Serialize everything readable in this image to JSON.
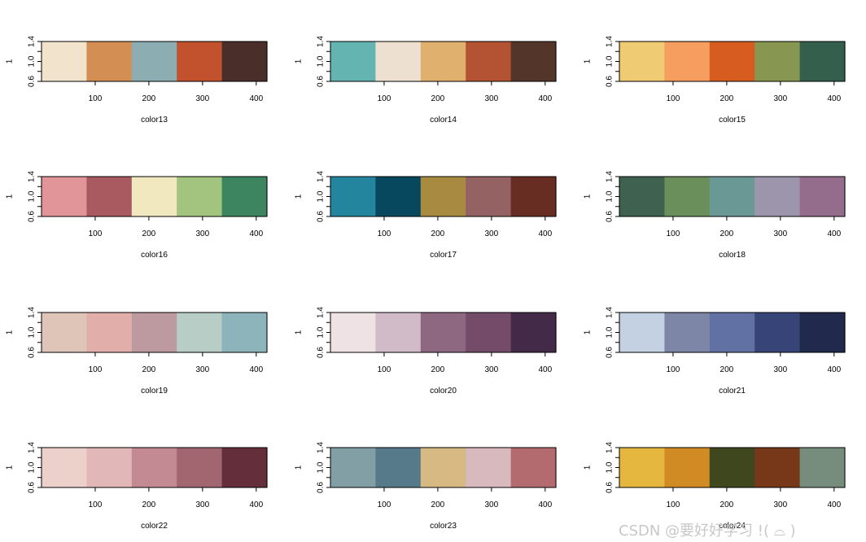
{
  "chart_data": [
    {
      "type": "heatmap",
      "xlabel": "color13",
      "ylabel": "1",
      "ylim": [
        0.6,
        1.4
      ],
      "yticks": [
        "0.6",
        "1.0",
        "1.4"
      ],
      "xlim": [
        0,
        420
      ],
      "xticks": [
        "100",
        "200",
        "300",
        "400"
      ],
      "grid": false,
      "colors": [
        "#F2E3CC",
        "#D38F53",
        "#8CAEB2",
        "#C2512E",
        "#4A2E2A"
      ]
    },
    {
      "type": "heatmap",
      "xlabel": "color14",
      "ylabel": "1",
      "ylim": [
        0.6,
        1.4
      ],
      "yticks": [
        "0.6",
        "1.0",
        "1.4"
      ],
      "xlim": [
        0,
        420
      ],
      "xticks": [
        "100",
        "200",
        "300",
        "400"
      ],
      "grid": false,
      "colors": [
        "#64B5B2",
        "#EEE0D0",
        "#E0B06E",
        "#B35334",
        "#533629"
      ]
    },
    {
      "type": "heatmap",
      "xlabel": "color15",
      "ylabel": "1",
      "ylim": [
        0.6,
        1.4
      ],
      "yticks": [
        "0.6",
        "1.0",
        "1.4"
      ],
      "xlim": [
        0,
        420
      ],
      "xticks": [
        "100",
        "200",
        "300",
        "400"
      ],
      "grid": false,
      "colors": [
        "#EFCB73",
        "#F69D60",
        "#D65C1F",
        "#879751",
        "#345F4C"
      ]
    },
    {
      "type": "heatmap",
      "xlabel": "color16",
      "ylabel": "1",
      "ylim": [
        0.6,
        1.4
      ],
      "yticks": [
        "0.6",
        "1.0",
        "1.4"
      ],
      "xlim": [
        0,
        420
      ],
      "xticks": [
        "100",
        "200",
        "300",
        "400"
      ],
      "grid": false,
      "colors": [
        "#E29599",
        "#A95A61",
        "#F1E8C0",
        "#A2C47E",
        "#3D8561"
      ]
    },
    {
      "type": "heatmap",
      "xlabel": "color17",
      "ylabel": "1",
      "ylim": [
        0.6,
        1.4
      ],
      "yticks": [
        "0.6",
        "1.0",
        "1.4"
      ],
      "xlim": [
        0,
        420
      ],
      "xticks": [
        "100",
        "200",
        "300",
        "400"
      ],
      "grid": false,
      "colors": [
        "#24869E",
        "#07485F",
        "#A88B40",
        "#946263",
        "#672D23"
      ]
    },
    {
      "type": "heatmap",
      "xlabel": "color18",
      "ylabel": "1",
      "ylim": [
        0.6,
        1.4
      ],
      "yticks": [
        "0.6",
        "1.0",
        "1.4"
      ],
      "xlim": [
        0,
        420
      ],
      "xticks": [
        "100",
        "200",
        "300",
        "400"
      ],
      "grid": false,
      "colors": [
        "#3E6150",
        "#6A8F5B",
        "#6A9894",
        "#9D95AC",
        "#946C8C"
      ]
    },
    {
      "type": "heatmap",
      "xlabel": "color19",
      "ylabel": "1",
      "ylim": [
        0.6,
        1.4
      ],
      "yticks": [
        "0.6",
        "1.0",
        "1.4"
      ],
      "xlim": [
        0,
        420
      ],
      "xticks": [
        "100",
        "200",
        "300",
        "400"
      ],
      "grid": false,
      "colors": [
        "#DEC5B7",
        "#E2AEAA",
        "#BC9AA0",
        "#B8CDC5",
        "#8DB4BA"
      ]
    },
    {
      "type": "heatmap",
      "xlabel": "color20",
      "ylabel": "1",
      "ylim": [
        0.6,
        1.4
      ],
      "yticks": [
        "0.6",
        "1.0",
        "1.4"
      ],
      "xlim": [
        0,
        420
      ],
      "xticks": [
        "100",
        "200",
        "300",
        "400"
      ],
      "grid": false,
      "colors": [
        "#EEE2E5",
        "#D2BBC8",
        "#8D6880",
        "#744B68",
        "#432A49"
      ]
    },
    {
      "type": "heatmap",
      "xlabel": "color21",
      "ylabel": "1",
      "ylim": [
        0.6,
        1.4
      ],
      "yticks": [
        "0.6",
        "1.0",
        "1.4"
      ],
      "xlim": [
        0,
        420
      ],
      "xticks": [
        "100",
        "200",
        "300",
        "400"
      ],
      "grid": false,
      "colors": [
        "#C4D1E3",
        "#7D86A6",
        "#6271A3",
        "#374478",
        "#212A4C"
      ]
    },
    {
      "type": "heatmap",
      "xlabel": "color22",
      "ylabel": "1",
      "ylim": [
        0.6,
        1.4
      ],
      "yticks": [
        "0.6",
        "1.0",
        "1.4"
      ],
      "xlim": [
        0,
        420
      ],
      "xticks": [
        "100",
        "200",
        "300",
        "400"
      ],
      "grid": false,
      "colors": [
        "#ECD1CA",
        "#E1B7B8",
        "#C48A93",
        "#A1666F",
        "#642E3A"
      ]
    },
    {
      "type": "heatmap",
      "xlabel": "color23",
      "ylabel": "1",
      "ylim": [
        0.6,
        1.4
      ],
      "yticks": [
        "0.6",
        "1.0",
        "1.4"
      ],
      "xlim": [
        0,
        420
      ],
      "xticks": [
        "100",
        "200",
        "300",
        "400"
      ],
      "grid": false,
      "colors": [
        "#819FA4",
        "#577A8A",
        "#D6B983",
        "#D8B9BE",
        "#B36B6F"
      ]
    },
    {
      "type": "heatmap",
      "xlabel": "color24",
      "ylabel": "1",
      "ylim": [
        0.6,
        1.4
      ],
      "yticks": [
        "0.6",
        "1.0",
        "1.4"
      ],
      "xlim": [
        0,
        420
      ],
      "xticks": [
        "100",
        "200",
        "300",
        "400"
      ],
      "grid": false,
      "colors": [
        "#E6B73F",
        "#D18B24",
        "#3F471E",
        "#773819",
        "#768C7C"
      ]
    }
  ],
  "watermark": "CSDN @要好好学习 !( ⌓ )"
}
